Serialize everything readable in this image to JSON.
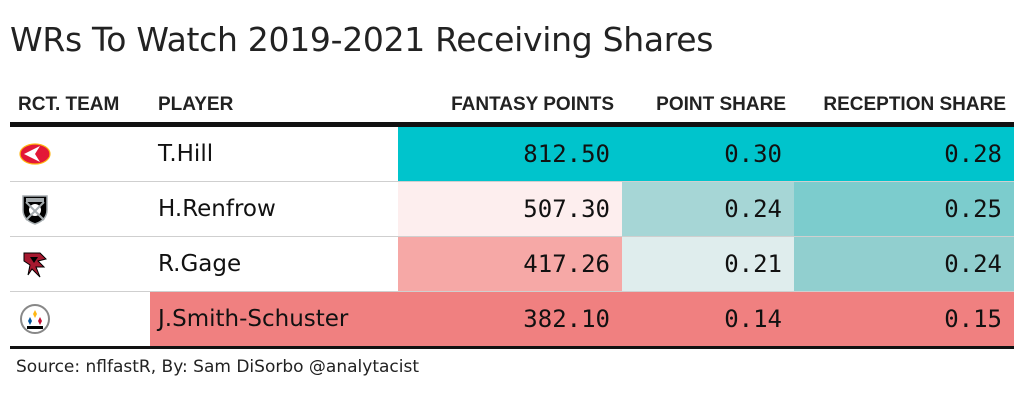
{
  "title": "WRs To Watch 2019-2021 Receiving Shares",
  "columns": [
    "RCT. TEAM",
    "PLAYER",
    "FANTASY POINTS",
    "POINT SHARE",
    "RECEPTION SHARE"
  ],
  "rows": [
    {
      "team_icon": "chiefs-logo-icon",
      "player": "T.Hill",
      "fantasy_points": "812.50",
      "point_share": "0.30",
      "reception_share": "0.28",
      "colors": {
        "fantasy_points": "#00c4cc",
        "point_share": "#00c4cc",
        "reception_share": "#00c4cc"
      }
    },
    {
      "team_icon": "raiders-logo-icon",
      "player": "H.Renfrow",
      "fantasy_points": "507.30",
      "point_share": "0.24",
      "reception_share": "0.25",
      "colors": {
        "fantasy_points": "#fdeeee",
        "point_share": "#a6d6d6",
        "reception_share": "#7ccccd"
      }
    },
    {
      "team_icon": "falcons-logo-icon",
      "player": "R.Gage",
      "fantasy_points": "417.26",
      "point_share": "0.21",
      "reception_share": "0.24",
      "colors": {
        "fantasy_points": "#f6a8a6",
        "point_share": "#dfeded",
        "reception_share": "#91cfcf"
      }
    },
    {
      "team_icon": "steelers-logo-icon",
      "player": "J.Smith-Schuster",
      "fantasy_points": "382.10",
      "point_share": "0.14",
      "reception_share": "0.15",
      "colors": {
        "fantasy_points": "#f08080",
        "point_share": "#f08080",
        "reception_share": "#f08080",
        "player": "#f08080"
      }
    }
  ],
  "source": "Source: nflfastR, By: Sam DiSorbo @analytacist",
  "chart_data": {
    "type": "table",
    "title": "WRs To Watch 2019-2021 Receiving Shares",
    "columns": [
      "RCT. TEAM",
      "PLAYER",
      "FANTASY POINTS",
      "POINT SHARE",
      "RECEPTION SHARE"
    ],
    "rows": [
      [
        "KC",
        "T.Hill",
        812.5,
        0.3,
        0.28
      ],
      [
        "LV",
        "H.Renfrow",
        507.3,
        0.24,
        0.25
      ],
      [
        "ATL",
        "R.Gage",
        417.26,
        0.21,
        0.24
      ],
      [
        "PIT",
        "J.Smith-Schuster",
        382.1,
        0.14,
        0.15
      ]
    ]
  }
}
